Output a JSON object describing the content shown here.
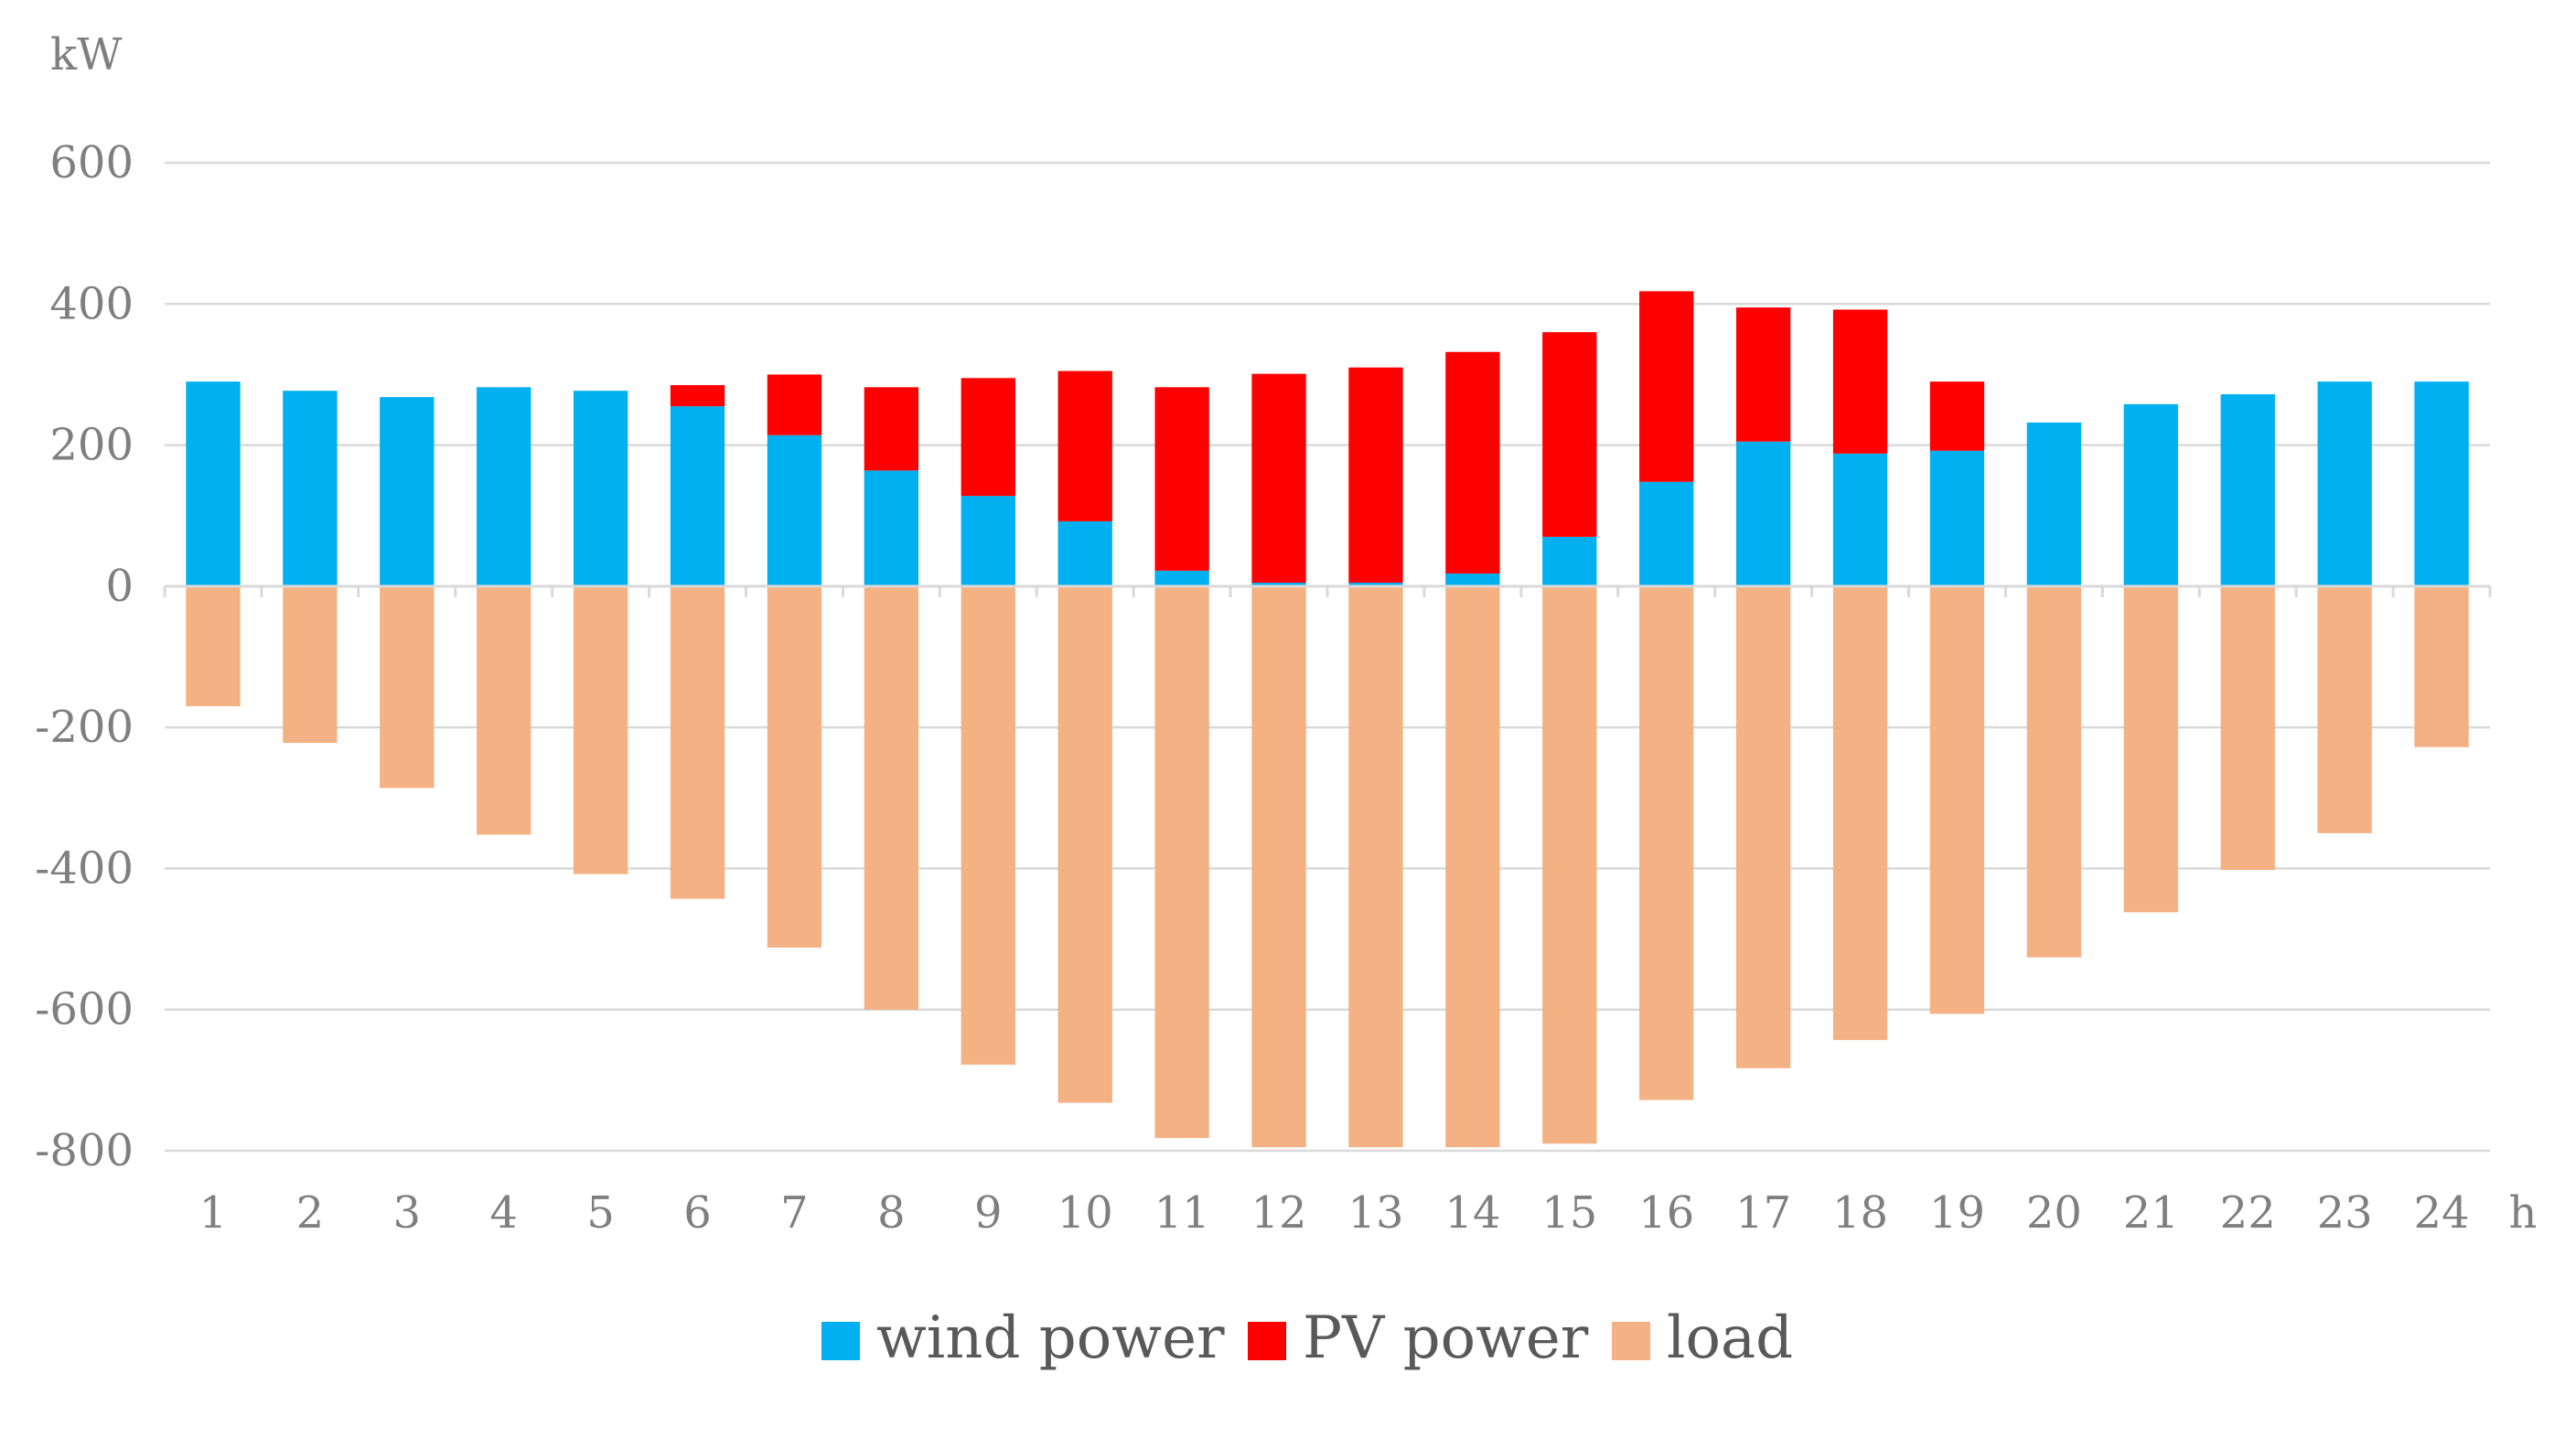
{
  "chart_data": {
    "type": "bar",
    "stacked": true,
    "title": "",
    "xlabel": "h",
    "ylabel": "kW",
    "ylim": [
      -800,
      600
    ],
    "yticks": [
      600,
      400,
      200,
      0,
      -200,
      -400,
      -600,
      -800
    ],
    "grid": true,
    "legend_position": "bottom",
    "categories": [
      "1",
      "2",
      "3",
      "4",
      "5",
      "6",
      "7",
      "8",
      "9",
      "10",
      "11",
      "12",
      "13",
      "14",
      "15",
      "16",
      "17",
      "18",
      "19",
      "20",
      "21",
      "22",
      "23",
      "24"
    ],
    "series": [
      {
        "name": "wind power",
        "color": "#00B0F0",
        "values": [
          290,
          277,
          268,
          282,
          277,
          255,
          214,
          164,
          128,
          92,
          22,
          5,
          5,
          18,
          70,
          148,
          205,
          188,
          192,
          232,
          258,
          272,
          290,
          290
        ]
      },
      {
        "name": "PV power",
        "color": "#FF0000",
        "values": [
          0,
          0,
          0,
          0,
          0,
          30,
          86,
          118,
          167,
          213,
          260,
          296,
          305,
          314,
          290,
          270,
          190,
          204,
          98,
          0,
          0,
          0,
          0,
          0
        ]
      },
      {
        "name": "load",
        "color": "#F4B183",
        "values": [
          -170,
          -222,
          -286,
          -352,
          -408,
          -443,
          -512,
          -600,
          -678,
          -732,
          -782,
          -795,
          -795,
          -795,
          -790,
          -728,
          -683,
          -643,
          -606,
          -526,
          -462,
          -402,
          -350,
          -228
        ]
      }
    ]
  }
}
